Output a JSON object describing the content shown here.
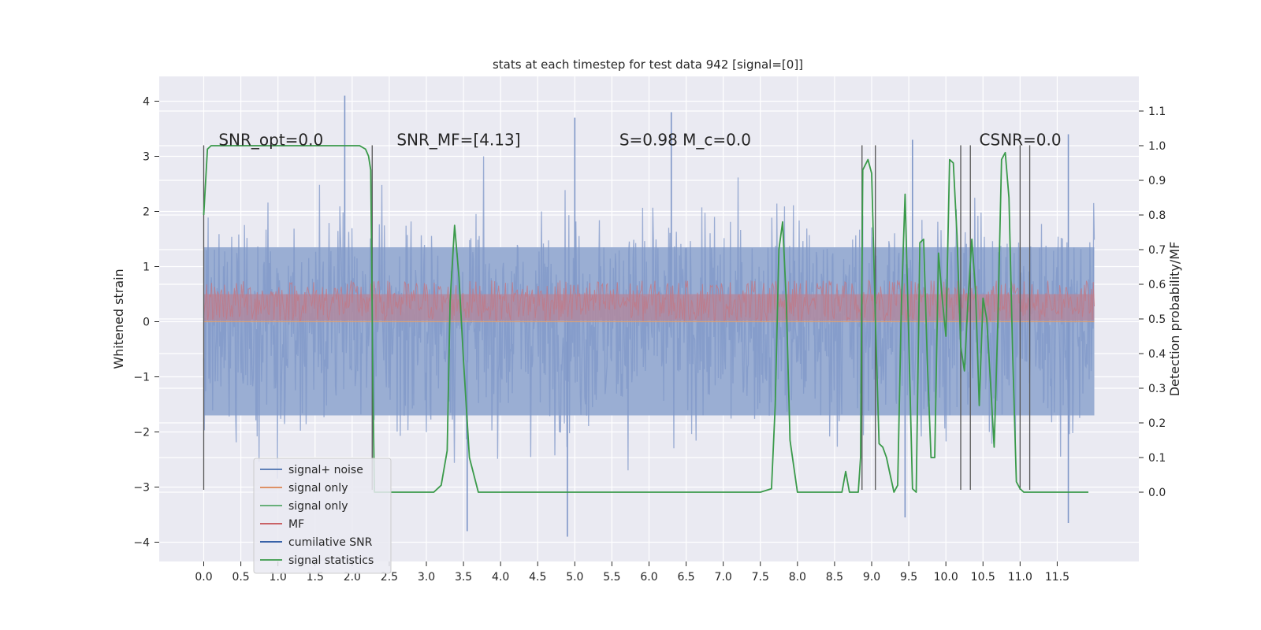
{
  "chart_data": {
    "type": "line",
    "title": "stats at each timestep for test data 942 [signal=[0]]",
    "xlabel": "",
    "ylabel": "Whitened strain",
    "y2label": "Detection probability/MF",
    "xlim": [
      -0.6,
      12.6
    ],
    "ylim": [
      -4.35,
      4.45
    ],
    "y2lim": [
      -0.2,
      1.2
    ],
    "x_ticks": [
      0.0,
      0.5,
      1.0,
      1.5,
      2.0,
      2.5,
      3.0,
      3.5,
      4.0,
      4.5,
      5.0,
      5.5,
      6.0,
      6.5,
      7.0,
      7.5,
      8.0,
      8.5,
      9.0,
      9.5,
      10.0,
      10.5,
      11.0,
      11.5
    ],
    "x_tick_labels": [
      "0.0",
      "0.5",
      "1.0",
      "1.5",
      "2.0",
      "2.5",
      "3.0",
      "3.5",
      "4.0",
      "4.5",
      "5.0",
      "5.5",
      "6.0",
      "6.5",
      "7.0",
      "7.5",
      "8.0",
      "8.5",
      "9.0",
      "9.5",
      "10.0",
      "10.5",
      "11.0",
      "11.5"
    ],
    "y_ticks": [
      -4,
      -3,
      -2,
      -1,
      0,
      1,
      2,
      3,
      4
    ],
    "y_tick_labels": [
      "−4",
      "−3",
      "−2",
      "−1",
      "0",
      "1",
      "2",
      "3",
      "4"
    ],
    "y2_ticks": [
      0.0,
      0.1,
      0.2,
      0.3,
      0.4,
      0.5,
      0.6,
      0.7,
      0.8,
      0.9,
      1.0,
      1.1
    ],
    "y2_tick_labels": [
      "0.0",
      "0.1",
      "0.2",
      "0.3",
      "0.4",
      "0.5",
      "0.6",
      "0.7",
      "0.8",
      "0.9",
      "1.0",
      "1.1"
    ],
    "grid": true,
    "legend_position": "lower-left",
    "legend": [
      {
        "label": "signal+ noise",
        "color": "#4c72b0"
      },
      {
        "label": "signal only",
        "color": "#dd8452"
      },
      {
        "label": "signal only",
        "color": "#55a868"
      },
      {
        "label": "MF",
        "color": "#c44e52"
      },
      {
        "label": "cumilative SNR",
        "color": "#1f4e9e"
      },
      {
        "label": "signal statistics",
        "color": "#3a9a4a"
      }
    ],
    "annotations": [
      {
        "text": "SNR_opt=0.0",
        "x": 0.2,
        "y": 3.3
      },
      {
        "text": "SNR_MF=[4.13]",
        "x": 2.6,
        "y": 3.3
      },
      {
        "text": "S=0.98   M_c=0.0",
        "x": 5.6,
        "y": 3.3
      },
      {
        "text": "CSNR=0.0",
        "x": 10.45,
        "y": 3.3
      }
    ],
    "strain": {
      "x_range": [
        0.0,
        12.0
      ],
      "typical_range": [
        -1.8,
        1.8
      ],
      "peaks": [
        {
          "x": 1.9,
          "y": 4.1
        },
        {
          "x": 5.0,
          "y": 3.7
        },
        {
          "x": 6.3,
          "y": 3.8
        },
        {
          "x": 9.55,
          "y": 3.3
        },
        {
          "x": 11.65,
          "y": 3.4
        },
        {
          "x": 3.55,
          "y": -3.8
        },
        {
          "x": 4.9,
          "y": -3.9
        },
        {
          "x": 9.45,
          "y": -3.55
        },
        {
          "x": 11.65,
          "y": -3.65
        }
      ]
    },
    "mf": {
      "x_range": [
        0.0,
        12.0
      ],
      "range": [
        0.0,
        0.75
      ]
    },
    "vertical_markers": [
      {
        "x": 0.0,
        "y": [
          -3.05,
          3.2
        ]
      },
      {
        "x": 2.27,
        "y": [
          -3.05,
          3.2
        ]
      },
      {
        "x": 8.87,
        "y": [
          -3.05,
          3.2
        ]
      },
      {
        "x": 9.05,
        "y": [
          -3.05,
          3.2
        ]
      },
      {
        "x": 10.2,
        "y": [
          -3.05,
          3.2
        ]
      },
      {
        "x": 10.33,
        "y": [
          -3.05,
          3.2
        ]
      },
      {
        "x": 11.0,
        "y": [
          -3.05,
          3.2
        ]
      },
      {
        "x": 11.13,
        "y": [
          -3.05,
          3.2
        ]
      }
    ],
    "series": [
      {
        "name": "signal statistics",
        "color": "#3a9a4a",
        "x": [
          0.0,
          0.05,
          0.1,
          0.2,
          0.5,
          1.0,
          1.5,
          2.0,
          2.1,
          2.18,
          2.22,
          2.25,
          2.28,
          2.3,
          2.35,
          2.45,
          2.6,
          2.8,
          3.0,
          3.1,
          3.2,
          3.28,
          3.32,
          3.38,
          3.44,
          3.5,
          3.58,
          3.7,
          4.0,
          5.0,
          6.0,
          7.0,
          7.5,
          7.65,
          7.7,
          7.75,
          7.8,
          7.85,
          7.9,
          8.0,
          8.5,
          8.6,
          8.65,
          8.7,
          8.82,
          8.85,
          8.88,
          8.95,
          9.0,
          9.05,
          9.1,
          9.15,
          9.2,
          9.25,
          9.3,
          9.35,
          9.4,
          9.45,
          9.5,
          9.55,
          9.6,
          9.65,
          9.7,
          9.75,
          9.8,
          9.85,
          9.9,
          9.95,
          10.0,
          10.05,
          10.1,
          10.15,
          10.2,
          10.25,
          10.3,
          10.35,
          10.4,
          10.45,
          10.5,
          10.55,
          10.6,
          10.65,
          10.7,
          10.75,
          10.8,
          10.85,
          10.9,
          10.95,
          11.0,
          11.05,
          11.1,
          11.15,
          11.2,
          11.25,
          11.3,
          11.4,
          11.6,
          11.8,
          11.92
        ],
        "y": [
          0.8,
          0.99,
          1.0,
          1.0,
          1.0,
          1.0,
          1.0,
          1.0,
          1.0,
          0.99,
          0.97,
          0.93,
          0.3,
          0.0,
          0.0,
          0.0,
          0.0,
          0.0,
          0.0,
          0.0,
          0.02,
          0.12,
          0.55,
          0.77,
          0.62,
          0.38,
          0.1,
          0.0,
          0.0,
          0.0,
          0.0,
          0.0,
          0.0,
          0.01,
          0.25,
          0.7,
          0.78,
          0.55,
          0.15,
          0.0,
          0.0,
          0.0,
          0.06,
          0.0,
          0.0,
          0.1,
          0.93,
          0.96,
          0.92,
          0.5,
          0.14,
          0.13,
          0.1,
          0.05,
          0.0,
          0.02,
          0.54,
          0.86,
          0.44,
          0.01,
          0.0,
          0.72,
          0.73,
          0.38,
          0.1,
          0.1,
          0.69,
          0.56,
          0.45,
          0.96,
          0.95,
          0.74,
          0.42,
          0.35,
          0.56,
          0.73,
          0.58,
          0.25,
          0.56,
          0.5,
          0.32,
          0.13,
          0.49,
          0.96,
          0.98,
          0.85,
          0.4,
          0.03,
          0.01,
          0.0,
          0.0,
          0.0,
          0.0,
          0.0,
          0.0,
          0.0,
          0.0,
          0.0,
          0.0
        ]
      }
    ]
  }
}
